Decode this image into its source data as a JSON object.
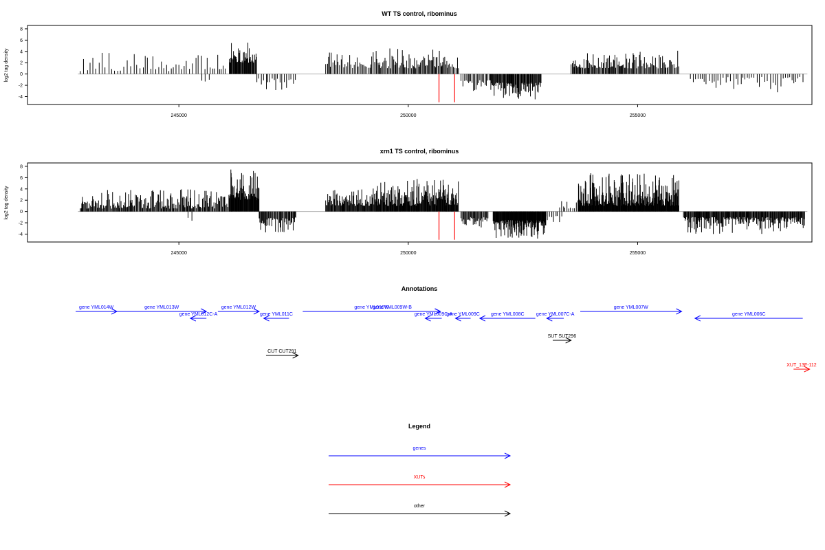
{
  "chart_data": [
    {
      "type": "bar",
      "title": "WT TS control, ribominus",
      "ylabel": "log2 tag density",
      "xlim": [
        241700,
        258800
      ],
      "ylim": [
        -5.4,
        8.6
      ],
      "xticks": [
        245000,
        250000,
        255000
      ],
      "yticks": [
        -4,
        -2,
        0,
        2,
        4,
        6,
        8
      ],
      "grid": false,
      "baseline_color": "#b0b0b0",
      "bar_color": "#000000",
      "marker_color": "#ff4040",
      "markers": [
        {
          "x": 250670,
          "y": -5
        },
        {
          "x": 251010,
          "y": -5
        }
      ],
      "regions": [
        {
          "x0": 242850,
          "x1": 244950,
          "sign": 1,
          "min": 0.5,
          "max": 3.8,
          "step": 65
        },
        {
          "x0": 245000,
          "x1": 246050,
          "sign": 1,
          "min": 0.8,
          "max": 3.5,
          "step": 55
        },
        {
          "x0": 245500,
          "x1": 245700,
          "sign": -1,
          "min": 1.0,
          "max": 2.0,
          "step": 90
        },
        {
          "x0": 246100,
          "x1": 246700,
          "sign": 1,
          "min": 2.0,
          "max": 6.2,
          "step": 14
        },
        {
          "x0": 246700,
          "x1": 247550,
          "sign": -1,
          "min": 0.8,
          "max": 3.0,
          "step": 45
        },
        {
          "x0": 248200,
          "x1": 249300,
          "sign": 1,
          "min": 1.0,
          "max": 4.0,
          "step": 30
        },
        {
          "x0": 249300,
          "x1": 250850,
          "sign": 1,
          "min": 1.0,
          "max": 4.6,
          "step": 22
        },
        {
          "x0": 250850,
          "x1": 251100,
          "sign": 1,
          "min": 1.0,
          "max": 3.0,
          "step": 30
        },
        {
          "x0": 251150,
          "x1": 251800,
          "sign": -1,
          "min": 1.0,
          "max": 3.0,
          "step": 30
        },
        {
          "x0": 251800,
          "x1": 252900,
          "sign": -1,
          "min": 1.5,
          "max": 4.6,
          "step": 15
        },
        {
          "x0": 253550,
          "x1": 254800,
          "sign": 1,
          "min": 1.0,
          "max": 4.0,
          "step": 20
        },
        {
          "x0": 254800,
          "x1": 255900,
          "sign": 1,
          "min": 1.0,
          "max": 4.2,
          "step": 22
        },
        {
          "x0": 256150,
          "x1": 258650,
          "sign": -1,
          "min": 0.5,
          "max": 3.6,
          "step": 55
        }
      ]
    },
    {
      "type": "bar",
      "title": "xrn1 TS control, ribominus",
      "ylabel": "log2 tag density",
      "xlim": [
        241700,
        258800
      ],
      "ylim": [
        -5.4,
        8.6
      ],
      "xticks": [
        245000,
        250000,
        255000
      ],
      "yticks": [
        -4,
        -2,
        0,
        2,
        4,
        6,
        8
      ],
      "grid": false,
      "baseline_color": "#b0b0b0",
      "bar_color": "#000000",
      "marker_color": "#ff4040",
      "markers": [
        {
          "x": 250670,
          "y": -5
        },
        {
          "x": 251010,
          "y": -5
        }
      ],
      "regions": [
        {
          "x0": 242850,
          "x1": 246100,
          "sign": 1,
          "min": 0.5,
          "max": 4.0,
          "step": 18
        },
        {
          "x0": 245200,
          "x1": 245350,
          "sign": -1,
          "min": 1.0,
          "max": 2.0,
          "step": 90
        },
        {
          "x0": 246100,
          "x1": 246750,
          "sign": 1,
          "min": 2.0,
          "max": 7.6,
          "step": 10
        },
        {
          "x0": 246750,
          "x1": 247550,
          "sign": -1,
          "min": 1.0,
          "max": 3.8,
          "step": 18
        },
        {
          "x0": 248200,
          "x1": 249300,
          "sign": 1,
          "min": 1.0,
          "max": 4.2,
          "step": 14
        },
        {
          "x0": 249300,
          "x1": 251100,
          "sign": 1,
          "min": 1.0,
          "max": 5.8,
          "step": 11
        },
        {
          "x0": 251150,
          "x1": 251750,
          "sign": -1,
          "min": 1.0,
          "max": 3.8,
          "step": 18
        },
        {
          "x0": 251850,
          "x1": 253000,
          "sign": -1,
          "min": 1.5,
          "max": 4.8,
          "step": 9
        },
        {
          "x0": 253000,
          "x1": 253350,
          "sign": -1,
          "min": 0.5,
          "max": 2.0,
          "step": 40
        },
        {
          "x0": 253300,
          "x1": 253700,
          "sign": 1,
          "min": 0.5,
          "max": 2.0,
          "step": 40
        },
        {
          "x0": 253700,
          "x1": 255900,
          "sign": 1,
          "min": 1.0,
          "max": 6.8,
          "step": 9
        },
        {
          "x0": 256000,
          "x1": 258650,
          "sign": -1,
          "min": 1.0,
          "max": 4.0,
          "step": 14
        }
      ]
    }
  ],
  "annotations": {
    "title": "Annotations",
    "xlim": [
      241700,
      258800
    ],
    "features": [
      {
        "label": "gene YML014W",
        "x0": 242750,
        "x1": 243650,
        "row": 0,
        "dir": 1,
        "color": "#0000ff"
      },
      {
        "label": "gene YML013W",
        "x0": 243650,
        "x1": 245600,
        "row": 0,
        "dir": 1,
        "color": "#0000ff"
      },
      {
        "label": "gene YML012C-A",
        "x0": 245250,
        "x1": 245600,
        "row": 1,
        "dir": -1,
        "color": "#0000ff"
      },
      {
        "label": "gene YML012W",
        "x0": 245850,
        "x1": 246750,
        "row": 0,
        "dir": 1,
        "color": "#0000ff"
      },
      {
        "label": "gene YML011C",
        "x0": 246850,
        "x1": 247400,
        "row": 1,
        "dir": -1,
        "color": "#0000ff"
      },
      {
        "label": "gene YML010W",
        "x0": 247700,
        "x1": 250700,
        "row": 0,
        "dir": 1,
        "color": "#0000ff"
      },
      {
        "label": "gene YML009W-B",
        "x0": 248600,
        "x1": 250700,
        "row": 0,
        "dir": 1,
        "color": "#0000ff"
      },
      {
        "label": "gene YML009C-A",
        "x0": 250370,
        "x1": 250730,
        "row": 1,
        "dir": -1,
        "color": "#0000ff"
      },
      {
        "label": "gene YML009C",
        "x0": 251030,
        "x1": 251360,
        "row": 1,
        "dir": -1,
        "color": "#0000ff"
      },
      {
        "label": "gene YML008C",
        "x0": 251560,
        "x1": 252770,
        "row": 1,
        "dir": -1,
        "color": "#0000ff"
      },
      {
        "label": "gene YML007C-A",
        "x0": 253020,
        "x1": 253390,
        "row": 1,
        "dir": -1,
        "color": "#0000ff"
      },
      {
        "label": "gene YML007W",
        "x0": 253750,
        "x1": 255960,
        "row": 0,
        "dir": 1,
        "color": "#0000ff"
      },
      {
        "label": "gene YML006C",
        "x0": 256250,
        "x1": 258600,
        "row": 1,
        "dir": -1,
        "color": "#0000ff"
      },
      {
        "label": "SUT SUT296",
        "x0": 253150,
        "x1": 253550,
        "row": 3,
        "dir": 1,
        "color": "#000000"
      },
      {
        "label": "CUT CUT291",
        "x0": 246900,
        "x1": 247600,
        "row": 5,
        "dir": 1,
        "color": "#000000"
      },
      {
        "label": "XUT_13F-112",
        "x0": 258400,
        "x1": 258750,
        "row": 7,
        "dir": 1,
        "color": "#ff0000"
      }
    ]
  },
  "legend": {
    "title": "Legend",
    "items": [
      {
        "label": "genes",
        "color": "#0000ff"
      },
      {
        "label": "XUTs",
        "color": "#ff0000"
      },
      {
        "label": "other",
        "color": "#000000"
      }
    ]
  }
}
